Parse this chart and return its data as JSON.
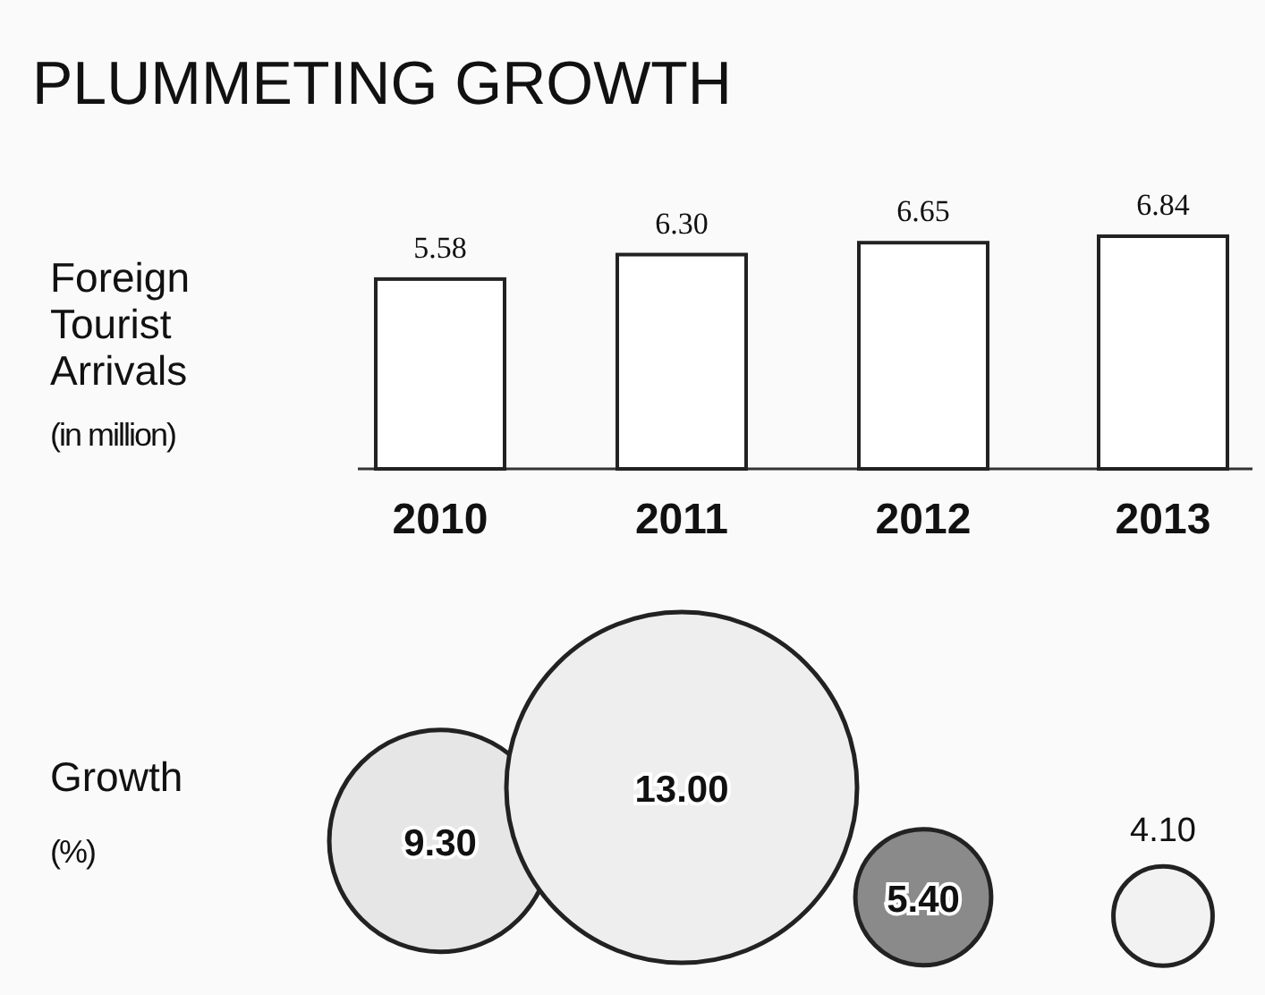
{
  "chart_data": [
    {
      "type": "bar",
      "title": "PLUMMETING GROWTH",
      "ylabel": "Foreign Tourist Arrivals (in million)",
      "categories": [
        "2010",
        "2011",
        "2012",
        "2013"
      ],
      "values": [
        5.58,
        6.3,
        6.65,
        6.84
      ],
      "value_labels": [
        "5.58",
        "6.30",
        "6.65",
        "6.84"
      ],
      "color": "#ffffff"
    },
    {
      "type": "bubble",
      "ylabel": "Growth (%)",
      "categories": [
        null,
        null,
        null,
        null
      ],
      "values": [
        9.3,
        13.0,
        5.4,
        4.1
      ],
      "value_labels": [
        "9.30",
        "13.00",
        "5.40",
        "4.10"
      ],
      "sizes": [
        0.4,
        1,
        0.15,
        0.08
      ],
      "colors": [
        "#e6e6e6",
        "#eeeeee",
        "#8a8a8a",
        "#f2f2f2"
      ]
    }
  ]
}
